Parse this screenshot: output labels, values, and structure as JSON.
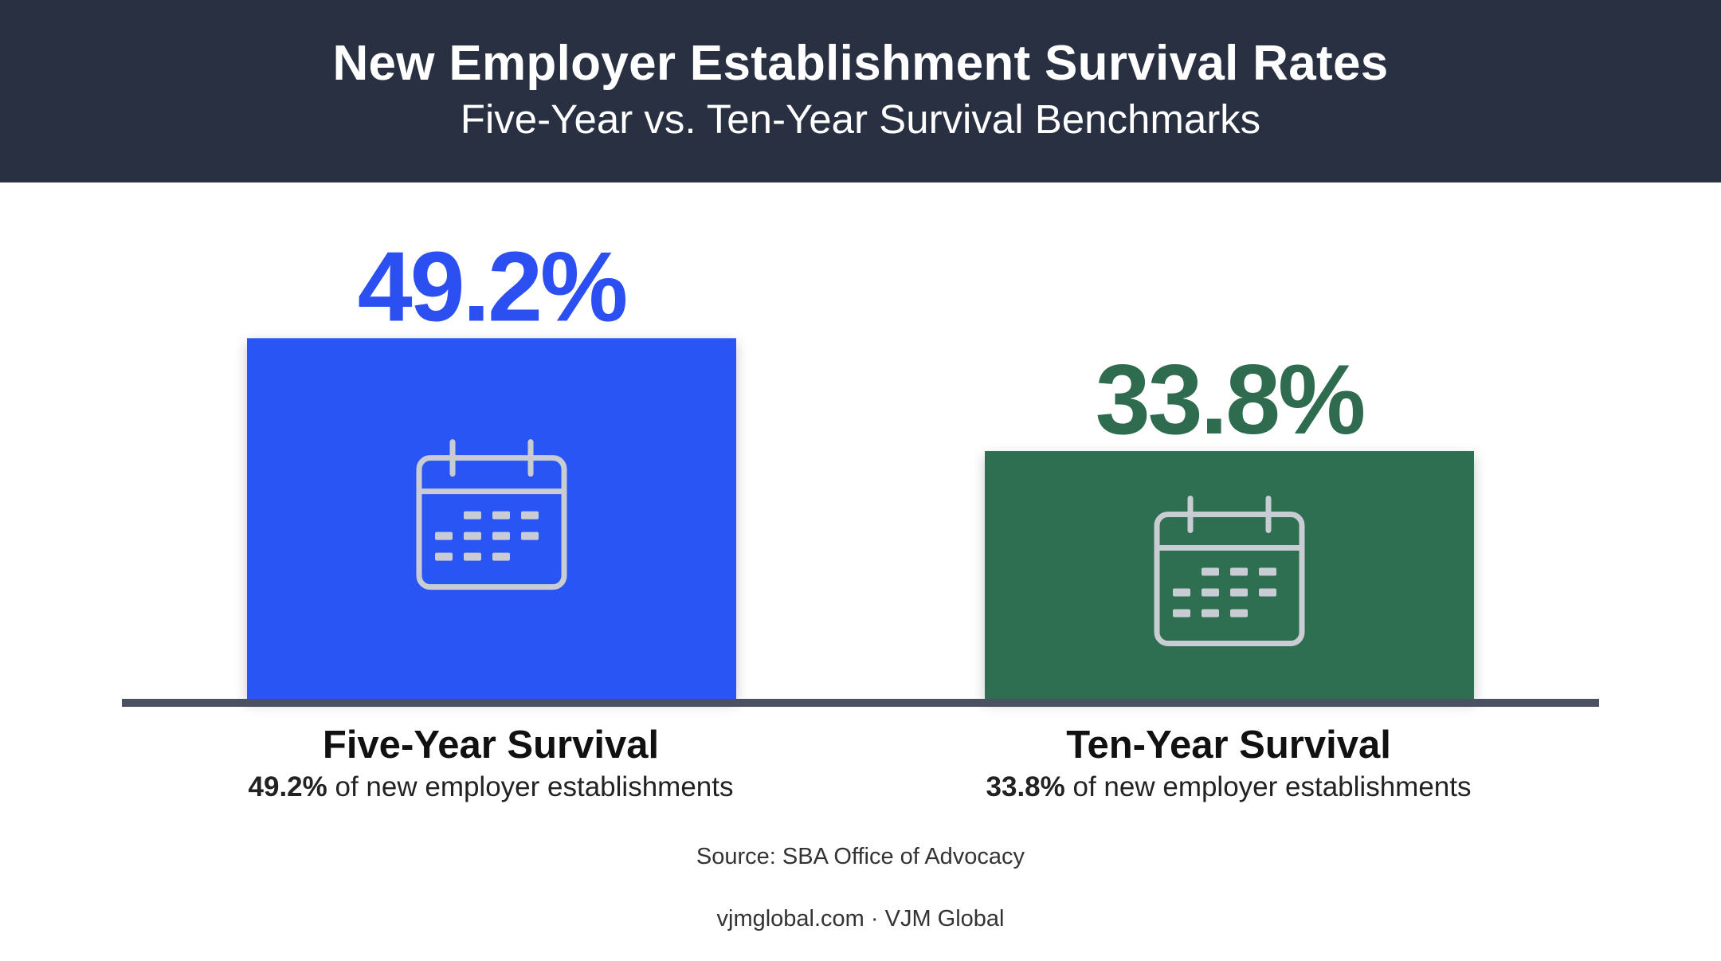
{
  "chart_data": {
    "type": "bar",
    "title": "New Employer Establishment Survival Rates",
    "subtitle": "Five-Year vs. Ten-Year Survival Benchmarks",
    "categories": [
      "Five-Year Survival",
      "Ten-Year Survival"
    ],
    "values": [
      49.2,
      33.8
    ],
    "value_labels": [
      "49.2%",
      "33.8%"
    ],
    "value_label_colors": [
      "#2b4ff0",
      "#2e6b4f"
    ],
    "bar_colors": [
      "#2b55f5",
      "#2e6e51"
    ],
    "descriptions": [
      {
        "bold": "49.2%",
        "rest": " of new employer establishments"
      },
      {
        "bold": "33.8%",
        "rest": " of new employer establishments"
      }
    ],
    "bar_icon": "calendar-icon",
    "ylim": [
      0,
      100
    ],
    "grid": false,
    "legend": "none",
    "xlabel": "",
    "ylabel": ""
  },
  "source": "Source: SBA Office of Advocacy",
  "credit": "vjmglobal.com · VJM Global",
  "colors": {
    "header_bg": "#283042",
    "baseline": "#4a5262"
  }
}
